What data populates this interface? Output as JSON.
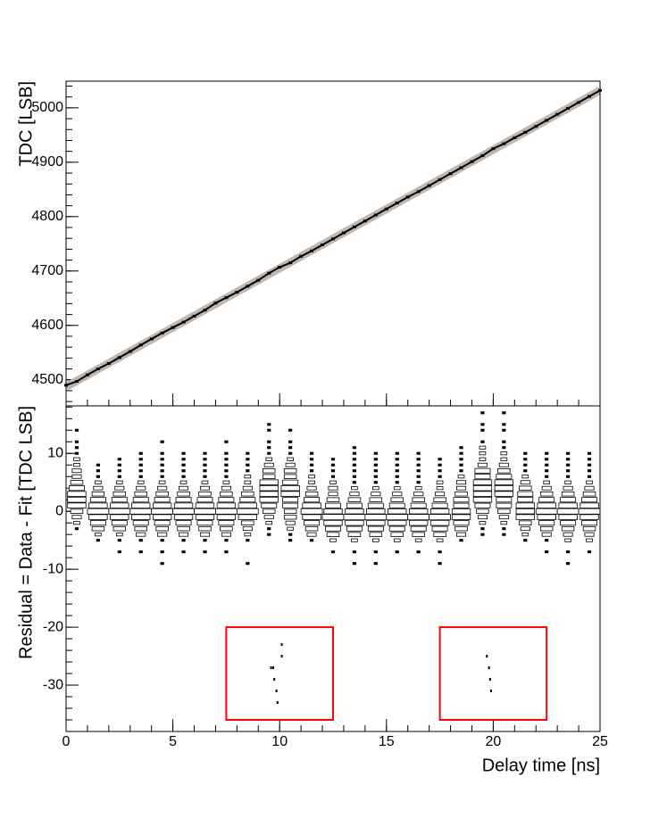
{
  "chart_data": [
    {
      "type": "scatter",
      "y_label": "TDC [LSB]",
      "xlim": [
        0,
        25
      ],
      "ylim": [
        4452,
        5049
      ],
      "yticks": [
        4500,
        4600,
        4700,
        4800,
        4900,
        5000
      ],
      "series": [
        {
          "color": "#c0b8b0",
          "style": "band",
          "x": [
            0,
            25
          ],
          "values": [
            4487,
            5032
          ]
        },
        {
          "color": "#000000",
          "style": "points",
          "x": [
            0,
            0.5,
            1,
            1.5,
            2,
            2.5,
            3,
            3.5,
            4,
            4.5,
            5,
            5.5,
            6,
            6.5,
            7,
            7.5,
            8,
            8.5,
            9,
            9.5,
            10,
            10.5,
            11,
            11.5,
            12,
            12.5,
            13,
            13.5,
            14,
            14.5,
            15,
            15.5,
            16,
            16.5,
            17,
            17.5,
            18,
            18.5,
            19,
            19.5,
            20,
            20.5,
            21,
            21.5,
            22,
            22.5,
            23,
            23.5,
            24,
            24.5,
            25
          ],
          "values": [
            4490,
            4497,
            4509,
            4520,
            4530,
            4541,
            4552,
            4564,
            4575,
            4586,
            4596,
            4606,
            4617,
            4628,
            4641,
            4651,
            4661,
            4672,
            4683,
            4696,
            4707,
            4715,
            4727,
            4737,
            4748,
            4759,
            4770,
            4781,
            4792,
            4803,
            4814,
            4825,
            4836,
            4846,
            4857,
            4868,
            4879,
            4890,
            4901,
            4912,
            4925,
            4934,
            4945,
            4955,
            4966,
            4977,
            4988,
            4999,
            5010,
            5021,
            5032
          ]
        }
      ]
    },
    {
      "type": "box2d",
      "x_label": "Delay time [ns]",
      "y_label": "Residual = Data - Fit [TDC LSB]",
      "xlim": [
        0,
        25
      ],
      "ylim": [
        -38,
        18.2
      ],
      "xticks": [
        0,
        5,
        10,
        15,
        20,
        25
      ],
      "yticks": [
        -30,
        -20,
        -10,
        0,
        10
      ],
      "x_bins": [
        0,
        1,
        2,
        3,
        4,
        5,
        6,
        7,
        8,
        9,
        10,
        11,
        12,
        13,
        14,
        15,
        16,
        17,
        18,
        19,
        20,
        21,
        22,
        23,
        24,
        25
      ],
      "y_levels": [
        17,
        15,
        14,
        12,
        11,
        10,
        9,
        8,
        7,
        6,
        5,
        4,
        3,
        2,
        1,
        0,
        -1,
        -2,
        -3,
        -4,
        -5,
        -7,
        -9
      ],
      "counts": [
        [
          0,
          0,
          0,
          0,
          0,
          0,
          0,
          0,
          0,
          0,
          0,
          0,
          0,
          0,
          0,
          0,
          0,
          0,
          0,
          1,
          1,
          0,
          0,
          0,
          0
        ],
        [
          0,
          0,
          0,
          0,
          0,
          0,
          0,
          0,
          0,
          1,
          0,
          0,
          0,
          0,
          0,
          0,
          0,
          0,
          0,
          1,
          1,
          0,
          0,
          0,
          0
        ],
        [
          1,
          0,
          0,
          0,
          0,
          0,
          0,
          0,
          0,
          1,
          1,
          0,
          0,
          0,
          0,
          0,
          0,
          0,
          0,
          1,
          1,
          0,
          0,
          0,
          0
        ],
        [
          1,
          0,
          0,
          0,
          1,
          0,
          0,
          1,
          0,
          1,
          1,
          0,
          0,
          0,
          0,
          0,
          0,
          0,
          0,
          1,
          1,
          0,
          0,
          0,
          0
        ],
        [
          1,
          0,
          0,
          0,
          0,
          0,
          0,
          0,
          0,
          1,
          1,
          0,
          0,
          1,
          0,
          0,
          0,
          0,
          1,
          2,
          1,
          0,
          0,
          0,
          0
        ],
        [
          1,
          0,
          0,
          1,
          1,
          1,
          1,
          1,
          1,
          1,
          1,
          1,
          0,
          1,
          1,
          1,
          1,
          0,
          1,
          2,
          2,
          1,
          1,
          1,
          1
        ],
        [
          2,
          0,
          1,
          1,
          1,
          1,
          1,
          1,
          1,
          2,
          2,
          1,
          1,
          1,
          1,
          1,
          1,
          1,
          1,
          2,
          2,
          1,
          1,
          1,
          1
        ],
        [
          2,
          1,
          1,
          1,
          1,
          1,
          1,
          1,
          1,
          3,
          3,
          1,
          1,
          1,
          1,
          1,
          1,
          1,
          1,
          3,
          3,
          1,
          1,
          1,
          1
        ],
        [
          3,
          1,
          1,
          1,
          1,
          1,
          1,
          1,
          1,
          4,
          4,
          1,
          1,
          1,
          1,
          1,
          1,
          1,
          1,
          5,
          4,
          1,
          1,
          1,
          1
        ],
        [
          3,
          1,
          1,
          1,
          1,
          1,
          1,
          1,
          2,
          4,
          4,
          2,
          1,
          1,
          1,
          1,
          1,
          1,
          2,
          5,
          5,
          2,
          1,
          1,
          1
        ],
        [
          4,
          2,
          2,
          2,
          2,
          2,
          2,
          2,
          2,
          6,
          5,
          2,
          2,
          1,
          1,
          1,
          1,
          2,
          3,
          6,
          6,
          3,
          2,
          2,
          2
        ],
        [
          5,
          3,
          3,
          3,
          3,
          3,
          3,
          3,
          3,
          6,
          6,
          3,
          3,
          2,
          2,
          2,
          2,
          2,
          3,
          6,
          6,
          4,
          3,
          3,
          3
        ],
        [
          6,
          4,
          4,
          4,
          4,
          4,
          4,
          4,
          4,
          6,
          6,
          4,
          3,
          3,
          3,
          3,
          3,
          3,
          4,
          6,
          6,
          5,
          4,
          4,
          4
        ],
        [
          6,
          5,
          5,
          5,
          5,
          5,
          5,
          5,
          5,
          6,
          5,
          5,
          4,
          4,
          4,
          4,
          4,
          4,
          5,
          6,
          5,
          5,
          5,
          5,
          5
        ],
        [
          6,
          6,
          6,
          6,
          6,
          6,
          6,
          6,
          6,
          5,
          5,
          6,
          5,
          5,
          5,
          5,
          5,
          5,
          5,
          5,
          5,
          6,
          6,
          6,
          6
        ],
        [
          4,
          7,
          7,
          7,
          7,
          7,
          7,
          7,
          7,
          4,
          4,
          7,
          6,
          6,
          6,
          6,
          6,
          6,
          6,
          4,
          4,
          6,
          7,
          7,
          7
        ],
        [
          3,
          6,
          6,
          6,
          6,
          6,
          6,
          6,
          6,
          3,
          4,
          6,
          7,
          7,
          7,
          7,
          7,
          7,
          6,
          3,
          3,
          6,
          6,
          6,
          6
        ],
        [
          2,
          5,
          5,
          5,
          5,
          5,
          5,
          5,
          4,
          2,
          3,
          5,
          6,
          6,
          6,
          6,
          6,
          6,
          5,
          2,
          2,
          4,
          5,
          5,
          5
        ],
        [
          1,
          4,
          4,
          4,
          4,
          4,
          4,
          4,
          3,
          1,
          2,
          4,
          5,
          5,
          5,
          5,
          5,
          5,
          4,
          1,
          1,
          3,
          4,
          4,
          4
        ],
        [
          0,
          2,
          2,
          3,
          3,
          3,
          3,
          3,
          2,
          1,
          1,
          3,
          4,
          4,
          4,
          4,
          4,
          4,
          3,
          1,
          1,
          2,
          3,
          3,
          3
        ],
        [
          0,
          1,
          1,
          1,
          1,
          1,
          1,
          1,
          1,
          0,
          1,
          1,
          2,
          2,
          2,
          2,
          2,
          2,
          1,
          0,
          0,
          1,
          1,
          2,
          2
        ],
        [
          0,
          0,
          1,
          1,
          1,
          1,
          1,
          1,
          0,
          0,
          0,
          0,
          1,
          1,
          1,
          1,
          1,
          1,
          0,
          0,
          0,
          0,
          1,
          1,
          1
        ],
        [
          0,
          0,
          0,
          0,
          1,
          0,
          0,
          0,
          1,
          0,
          0,
          0,
          0,
          1,
          1,
          0,
          0,
          1,
          0,
          0,
          0,
          0,
          0,
          1,
          0
        ]
      ],
      "outliers": {
        "x": [
          9.6,
          9.7,
          9.75,
          9.85,
          9.9,
          10.1,
          10.1,
          19.7,
          19.8,
          19.85,
          19.9
        ],
        "y": [
          -27,
          -27,
          -29,
          -31,
          -33,
          -23,
          -25,
          -25,
          -27,
          -29,
          -31
        ]
      },
      "highlight_boxes": [
        {
          "xlim": [
            7.5,
            12.5
          ],
          "ylim": [
            -36,
            -20
          ],
          "color": "#ff0000"
        },
        {
          "xlim": [
            17.5,
            22.5
          ],
          "ylim": [
            -36,
            -20
          ],
          "color": "#ff0000"
        }
      ]
    }
  ]
}
